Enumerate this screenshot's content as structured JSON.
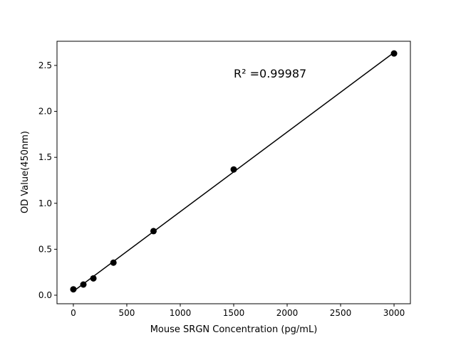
{
  "chart_data": {
    "type": "scatter",
    "title": "",
    "xlabel": "Mouse SRGN Concentration (pg/mL)",
    "ylabel": "OD Value(450nm)",
    "xlim": [
      -153,
      3153
    ],
    "ylim": [
      -0.093,
      2.763
    ],
    "xticks": [
      0,
      500,
      1000,
      1500,
      2000,
      2500,
      3000
    ],
    "yticks": [
      0.0,
      0.5,
      1.0,
      1.5,
      2.0,
      2.5
    ],
    "xtick_labels": [
      "0",
      "500",
      "1000",
      "1500",
      "2000",
      "2500",
      "3000"
    ],
    "ytick_labels": [
      "0.0",
      "0.5",
      "1.0",
      "1.5",
      "2.0",
      "2.5"
    ],
    "grid": false,
    "series": [
      {
        "x": [
          0,
          93.75,
          187.5,
          375,
          750,
          1500,
          3000
        ],
        "y": [
          0.064,
          0.116,
          0.183,
          0.354,
          0.697,
          1.368,
          2.63
        ],
        "color": "#000000",
        "fit_line": "linear"
      }
    ],
    "annotation": "R² =0.99987"
  }
}
